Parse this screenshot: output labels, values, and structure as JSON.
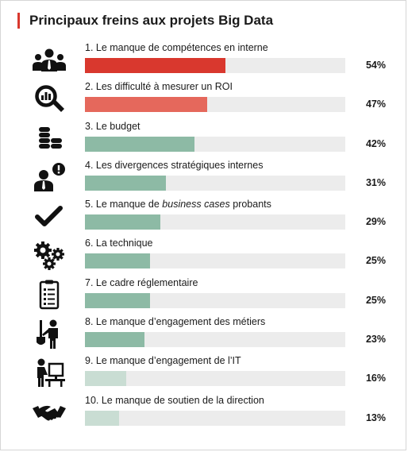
{
  "title": "Principaux freins aux projets Big Data",
  "colors": {
    "accent": "#d9382e",
    "track": "#ececec",
    "icon": "#111111"
  },
  "chart_data": {
    "type": "bar",
    "orientation": "horizontal",
    "title": "Principaux freins aux projets Big Data",
    "xlim": [
      0,
      100
    ],
    "unit": "%",
    "grid": false,
    "legend": "none",
    "categories": [
      "1. Le manque de compétences en interne",
      "2. Les difficulté à mesurer un ROI",
      "3. Le budget",
      "4. Les divergences stratégiques internes",
      "5. Le manque de business cases probants",
      "6. La technique",
      "7. Le cadre réglementaire",
      "8. Le manque d’engagement des métiers",
      "9. Le manque d’engagement de l’IT",
      "10. Le manque de soutien de la direction"
    ],
    "values": [
      54,
      47,
      42,
      31,
      29,
      25,
      25,
      23,
      16,
      13
    ],
    "items": [
      {
        "label_pre": "1. Le manque de compétences en interne",
        "label_em": "",
        "label_post": "",
        "value": 54,
        "value_label": "54%",
        "color": "#d9382e",
        "icon": "team-icon"
      },
      {
        "label_pre": "2. Les difficulté à mesurer un ROI",
        "label_em": "",
        "label_post": "",
        "value": 47,
        "value_label": "47%",
        "color": "#e5685c",
        "icon": "magnifier-chart-icon"
      },
      {
        "label_pre": "3. Le budget",
        "label_em": "",
        "label_post": "",
        "value": 42,
        "value_label": "42%",
        "color": "#8dbaa5",
        "icon": "coins-icon"
      },
      {
        "label_pre": "4. Les divergences stratégiques internes",
        "label_em": "",
        "label_post": "",
        "value": 31,
        "value_label": "31%",
        "color": "#8dbaa5",
        "icon": "person-alert-icon"
      },
      {
        "label_pre": "5. Le manque de ",
        "label_em": "business cases",
        "label_post": " probants",
        "value": 29,
        "value_label": "29%",
        "color": "#8dbaa5",
        "icon": "checkmark-icon"
      },
      {
        "label_pre": "6. La technique",
        "label_em": "",
        "label_post": "",
        "value": 25,
        "value_label": "25%",
        "color": "#8dbaa5",
        "icon": "gears-icon"
      },
      {
        "label_pre": "7. Le cadre réglementaire",
        "label_em": "",
        "label_post": "",
        "value": 25,
        "value_label": "25%",
        "color": "#8dbaa5",
        "icon": "clipboard-icon"
      },
      {
        "label_pre": "8. Le manque d’engagement des métiers",
        "label_em": "",
        "label_post": "",
        "value": 23,
        "value_label": "23%",
        "color": "#8dbaa5",
        "icon": "worker-shovel-icon"
      },
      {
        "label_pre": "9. Le manque d’engagement de l’IT",
        "label_em": "",
        "label_post": "",
        "value": 16,
        "value_label": "16%",
        "color": "#c9ddd3",
        "icon": "person-computer-icon"
      },
      {
        "label_pre": "10. Le manque de soutien de la direction",
        "label_em": "",
        "label_post": "",
        "value": 13,
        "value_label": "13%",
        "color": "#c9ddd3",
        "icon": "handshake-icon"
      }
    ]
  }
}
